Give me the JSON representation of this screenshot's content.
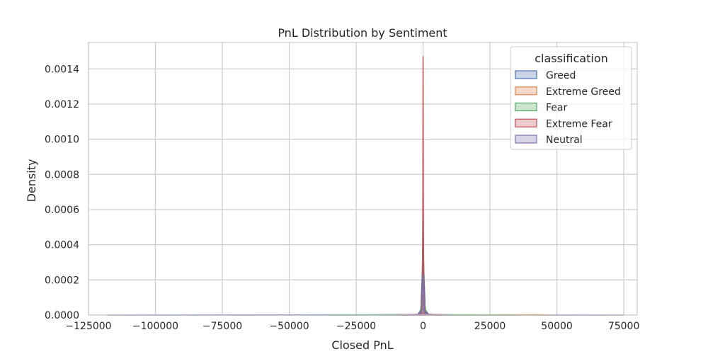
{
  "chart_data": {
    "type": "area",
    "title": "PnL Distribution by Sentiment",
    "xlabel": "Closed PnL",
    "ylabel": "Density",
    "xlim": [
      -125000,
      80000
    ],
    "ylim": [
      0,
      0.00155
    ],
    "x_ticks": [
      -125000,
      -100000,
      -75000,
      -50000,
      -25000,
      0,
      25000,
      50000,
      75000
    ],
    "x_tick_labels": [
      "−125000",
      "−100000",
      "−75000",
      "−50000",
      "−25000",
      "0",
      "25000",
      "50000",
      "75000"
    ],
    "y_ticks": [
      0,
      0.0002,
      0.0004,
      0.0006,
      0.0008,
      0.001,
      0.0012,
      0.0014
    ],
    "y_tick_labels": [
      "0.0000",
      "0.0002",
      "0.0004",
      "0.0006",
      "0.0008",
      "0.0010",
      "0.0012",
      "0.0014"
    ],
    "grid": true,
    "legend": {
      "title": "classification",
      "placement": "top-right"
    },
    "series": [
      {
        "name": "Greed",
        "color": "#4c72b0",
        "x": [
          -118000,
          -2000,
          -800,
          -300,
          0,
          300,
          800,
          2000,
          5000,
          75000
        ],
        "y": [
          0,
          2e-06,
          3e-05,
          0.00025,
          0.0005,
          0.00025,
          3e-05,
          5e-06,
          1e-06,
          0
        ]
      },
      {
        "name": "Extreme Greed",
        "color": "#dd8452",
        "x": [
          -12000,
          -1500,
          -500,
          0,
          500,
          1500,
          8000,
          43000,
          48000
        ],
        "y": [
          0,
          3e-06,
          4e-05,
          0.0002,
          4e-05,
          3e-06,
          1e-06,
          2e-06,
          0
        ]
      },
      {
        "name": "Fear",
        "color": "#55a868",
        "x": [
          -35000,
          -1200,
          -300,
          0,
          300,
          1200,
          35000
        ],
        "y": [
          0,
          3e-06,
          0.0001,
          0.00072,
          0.0001,
          3e-06,
          0
        ]
      },
      {
        "name": "Extreme Fear",
        "color": "#c44e52",
        "x": [
          -10000,
          -700,
          -150,
          0,
          150,
          700,
          10000
        ],
        "y": [
          0,
          5e-06,
          0.0002,
          0.00147,
          0.0002,
          5e-06,
          0
        ]
      },
      {
        "name": "Neutral",
        "color": "#8172b3",
        "x": [
          -10000,
          -1500,
          -400,
          0,
          400,
          1500,
          10000
        ],
        "y": [
          0,
          3e-06,
          3e-05,
          0.00022,
          3e-05,
          3e-06,
          0
        ]
      }
    ]
  }
}
